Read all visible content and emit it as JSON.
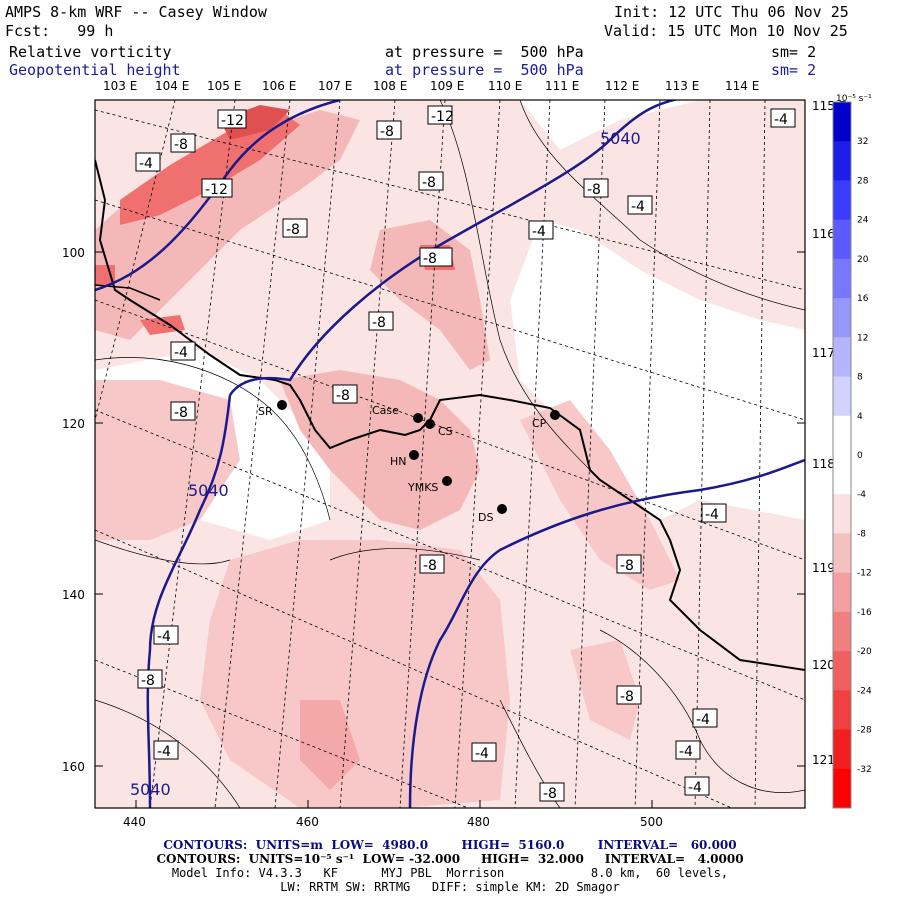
{
  "header": {
    "title": "AMPS 8-km WRF -- Casey Window",
    "init": "Init: 12 UTC Thu 06 Nov 25",
    "forecast": "Fcst:   99 h",
    "valid": "Valid: 15 UTC Mon 10 Nov 25",
    "field1": {
      "name": "Relative vorticity",
      "level": "at pressure =  500 hPa",
      "smooth": "sm= 2"
    },
    "field2": {
      "name": "Geopotential height",
      "level": "at pressure =  500 hPa",
      "smooth": "sm= 2"
    }
  },
  "map": {
    "lon_labels": [
      "103 E",
      "104 E",
      "105 E",
      "106 E",
      "107 E",
      "108 E",
      "109 E",
      "110 E",
      "111 E",
      "112 E",
      "113 E",
      "114 E"
    ],
    "lat_labels": [
      "115 E",
      "116 E",
      "117 E",
      "118 E",
      "119 E",
      "120 E",
      "121 E"
    ],
    "x_ticks": [
      "440",
      "460",
      "480",
      "500"
    ],
    "y_ticks": [
      "100",
      "120",
      "140",
      "160"
    ],
    "vorticity_labels": [
      "-12",
      "-8",
      "-4",
      "-12",
      "-8",
      "-8",
      "-12",
      "-8",
      "-8",
      "-4",
      "-8",
      "-4",
      "-8",
      "-4",
      "-8",
      "-8",
      "-8",
      "-4",
      "-8",
      "-4",
      "-8",
      "-4",
      "-4",
      "-4",
      "-4",
      "-4",
      "-4",
      "-8",
      "-8"
    ],
    "height_labels": [
      "5040",
      "5040",
      "5040"
    ],
    "stations": [
      "SR",
      "Case",
      "CS",
      "CP",
      "HN",
      "YMKS",
      "DS"
    ]
  },
  "colorbar": {
    "unit": "10⁻⁵ s⁻¹",
    "ticks": [
      "32",
      "28",
      "24",
      "20",
      "16",
      "12",
      "8",
      "4",
      "0",
      "-4",
      "-8",
      "-12",
      "-16",
      "-20",
      "-24",
      "-28",
      "-32"
    ],
    "colors": [
      "#0000cc",
      "#1e1ee6",
      "#3c3cff",
      "#5a5aff",
      "#7878ff",
      "#9696ff",
      "#b4b4ff",
      "#d2d2ff",
      "#ffffff",
      "#ffffff",
      "#fae0e0",
      "#f5c0c0",
      "#f5a0a0",
      "#f08080",
      "#f06060",
      "#f04040",
      "#f02020",
      "#ff0000"
    ]
  },
  "footer": {
    "line1": "CONTOURS:  UNITS=m  LOW=  4980.0        HIGH=  5160.0        INTERVAL=   60.000",
    "line2": "CONTOURS:  UNITS=10⁻⁵ s⁻¹  LOW= -32.000     HIGH=  32.000     INTERVAL=   4.0000",
    "line3": "Model Info: V4.3.3   KF      MYJ PBL  Morrison            8.0 km,  60 levels,",
    "line4": "LW: RRTM SW: RRTMG   DIFF: simple KM: 2D Smagor"
  }
}
